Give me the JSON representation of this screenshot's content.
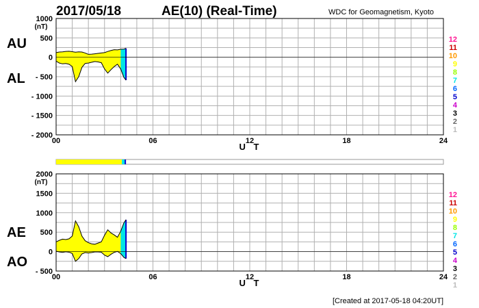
{
  "header": {
    "date": "2017/05/18",
    "title": "AE(10) (Real-Time)",
    "organization": "WDC for Geomagnetism, Kyoto"
  },
  "labels": {
    "au": "AU",
    "al": "AL",
    "ae": "AE",
    "ao": "AO",
    "unit": "(nT)",
    "x_axis": "U T"
  },
  "footer": {
    "created": "[Created at 2017-05-18 04:20UT]"
  },
  "colors": {
    "fill": "#ffff00",
    "cyan_band": "#00e5e5",
    "blue_band": "#0000cc",
    "grid": "#b0b0b0",
    "axis": "#000000",
    "strip_border": "#999999"
  },
  "station_key": {
    "labels": [
      "12",
      "11",
      "10",
      "9",
      "8",
      "7",
      "6",
      "5",
      "4",
      "3",
      "2",
      "1"
    ],
    "colors": [
      "#ff1493",
      "#cc0000",
      "#ff9900",
      "#ffff00",
      "#99ff00",
      "#00e5e5",
      "#0066ff",
      "#0000cc",
      "#cc00cc",
      "#000000",
      "#666666",
      "#bbbbbb"
    ]
  },
  "chart_data": [
    {
      "type": "area",
      "panel": "AU / AL",
      "xlabel": "U T",
      "ylabel": "(nT)",
      "xlim": [
        0,
        24
      ],
      "ylim": [
        -2000,
        1000
      ],
      "xticks": [
        "00",
        "06",
        "12",
        "18",
        "24"
      ],
      "yticks": [
        "1000",
        "500",
        "0",
        "- 500",
        "- 1000",
        "- 1500",
        "- 2000"
      ],
      "data_end_hour": 4.33,
      "series": [
        {
          "name": "AU",
          "x": [
            0,
            0.2,
            0.4,
            0.6,
            0.8,
            1.0,
            1.2,
            1.4,
            1.6,
            1.8,
            2.0,
            2.2,
            2.4,
            2.6,
            2.8,
            3.0,
            3.2,
            3.4,
            3.6,
            3.8,
            4.0,
            4.2,
            4.33
          ],
          "values": [
            120,
            135,
            140,
            150,
            155,
            145,
            130,
            140,
            135,
            110,
            75,
            80,
            90,
            100,
            110,
            120,
            150,
            175,
            195,
            190,
            205,
            210,
            230
          ]
        },
        {
          "name": "AL",
          "x": [
            0,
            0.2,
            0.4,
            0.6,
            0.8,
            1.0,
            1.2,
            1.4,
            1.6,
            1.8,
            2.0,
            2.2,
            2.4,
            2.6,
            2.8,
            3.0,
            3.2,
            3.4,
            3.6,
            3.8,
            4.0,
            4.2,
            4.33
          ],
          "values": [
            -100,
            -150,
            -170,
            -160,
            -180,
            -240,
            -630,
            -500,
            -260,
            -160,
            -150,
            -130,
            -110,
            -120,
            -140,
            -300,
            -410,
            -320,
            -240,
            -180,
            -300,
            -520,
            -590
          ]
        }
      ]
    },
    {
      "type": "area",
      "panel": "AE / AO",
      "xlabel": "U T",
      "ylabel": "(nT)",
      "xlim": [
        0,
        24
      ],
      "ylim": [
        -500,
        2000
      ],
      "xticks": [
        "00",
        "06",
        "12",
        "18",
        "24"
      ],
      "yticks": [
        "2000",
        "1500",
        "1000",
        "500",
        "0",
        "- 500"
      ],
      "data_end_hour": 4.33,
      "series": [
        {
          "name": "AE",
          "x": [
            0,
            0.2,
            0.4,
            0.6,
            0.8,
            1.0,
            1.2,
            1.4,
            1.6,
            1.8,
            2.0,
            2.2,
            2.4,
            2.6,
            2.8,
            3.0,
            3.2,
            3.4,
            3.6,
            3.8,
            4.0,
            4.2,
            4.33
          ],
          "values": [
            250,
            290,
            320,
            310,
            330,
            400,
            790,
            640,
            400,
            280,
            230,
            200,
            190,
            220,
            250,
            420,
            560,
            480,
            430,
            370,
            520,
            740,
            820
          ]
        },
        {
          "name": "AO",
          "x": [
            0,
            0.2,
            0.4,
            0.6,
            0.8,
            1.0,
            1.2,
            1.4,
            1.6,
            1.8,
            2.0,
            2.2,
            2.4,
            2.6,
            2.8,
            3.0,
            3.2,
            3.4,
            3.6,
            3.8,
            4.0,
            4.2,
            4.33
          ],
          "values": [
            10,
            -10,
            -20,
            -5,
            -15,
            -50,
            -250,
            -180,
            -60,
            -25,
            -35,
            -25,
            -10,
            -10,
            -15,
            -90,
            -130,
            -70,
            -20,
            5,
            -50,
            -150,
            -180
          ]
        }
      ]
    }
  ]
}
